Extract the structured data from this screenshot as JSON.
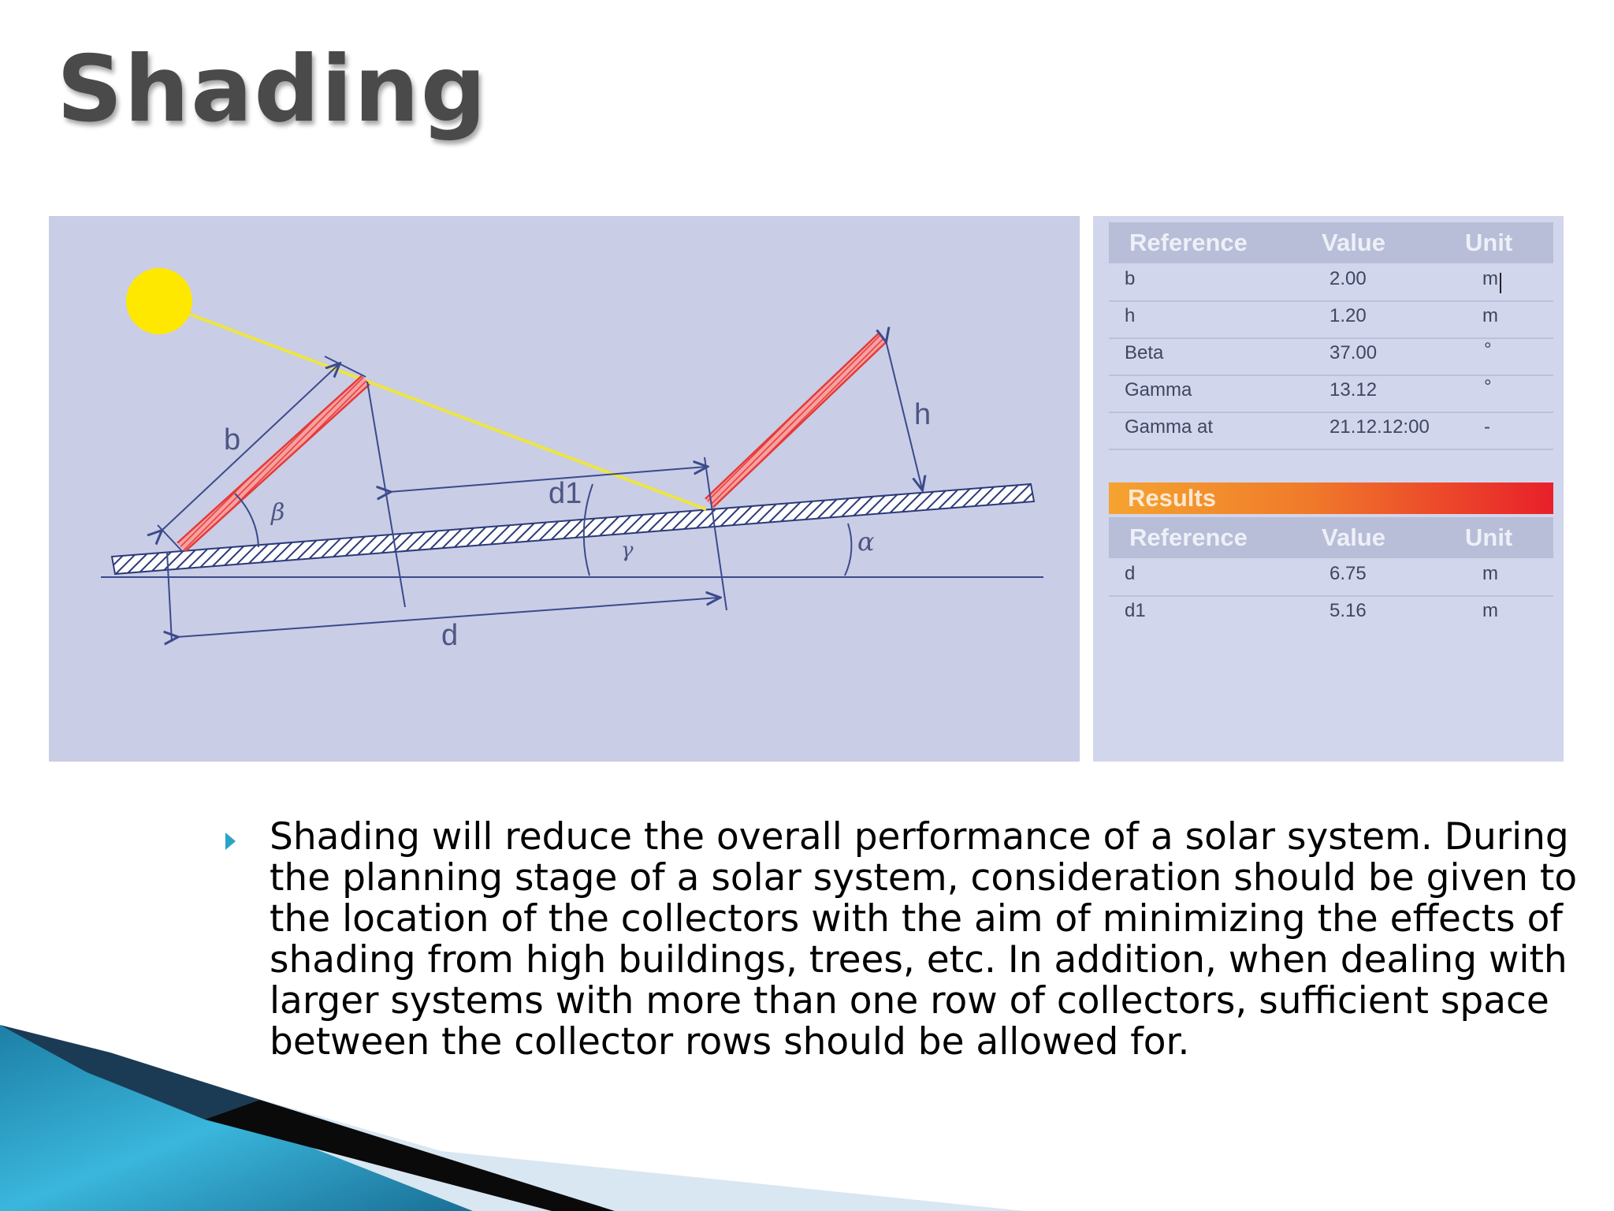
{
  "title": "Shading",
  "diagram": {
    "labels": {
      "b": "b",
      "beta": "β",
      "d1": "d1",
      "gamma": "γ",
      "alpha": "α",
      "h": "h",
      "d": "d"
    },
    "colors": {
      "background": "#c9cde6",
      "sun": "#ffe800",
      "sun_ray": "#ede542",
      "collector": "#e53a3a",
      "ground": "#2d3a7a",
      "dimension_line": "#3b4a8c"
    }
  },
  "reference_table": {
    "headers": [
      "Reference",
      "Value",
      "Unit"
    ],
    "rows": [
      {
        "reference": "b",
        "value": "2.00",
        "unit": "m"
      },
      {
        "reference": "h",
        "value": "1.20",
        "unit": "m"
      },
      {
        "reference": "Beta",
        "value": "37.00",
        "unit": "°"
      },
      {
        "reference": "Gamma",
        "value": "13.12",
        "unit": "°"
      },
      {
        "reference": "Gamma at",
        "value": "21.12.12:00",
        "unit": "-"
      }
    ]
  },
  "results": {
    "title": "Results",
    "headers": [
      "Reference",
      "Value",
      "Unit"
    ],
    "rows": [
      {
        "reference": "d",
        "value": "6.75",
        "unit": "m"
      },
      {
        "reference": "d1",
        "value": "5.16",
        "unit": "m"
      }
    ]
  },
  "body_text": "Shading will reduce the overall performance of a solar system. During the planning stage of a solar system, consideration should be given to the location of the collectors with the aim of minimizing the effects of shading from high buildings, trees, etc. In addition, when dealing with larger systems with more than one row of collectors, sufficient space between the collector rows should be allowed for.",
  "theme": {
    "accent": "#2ba2c8",
    "title_color": "#4a4a4a",
    "results_gradient": [
      "#f5a330",
      "#e8202a"
    ]
  }
}
